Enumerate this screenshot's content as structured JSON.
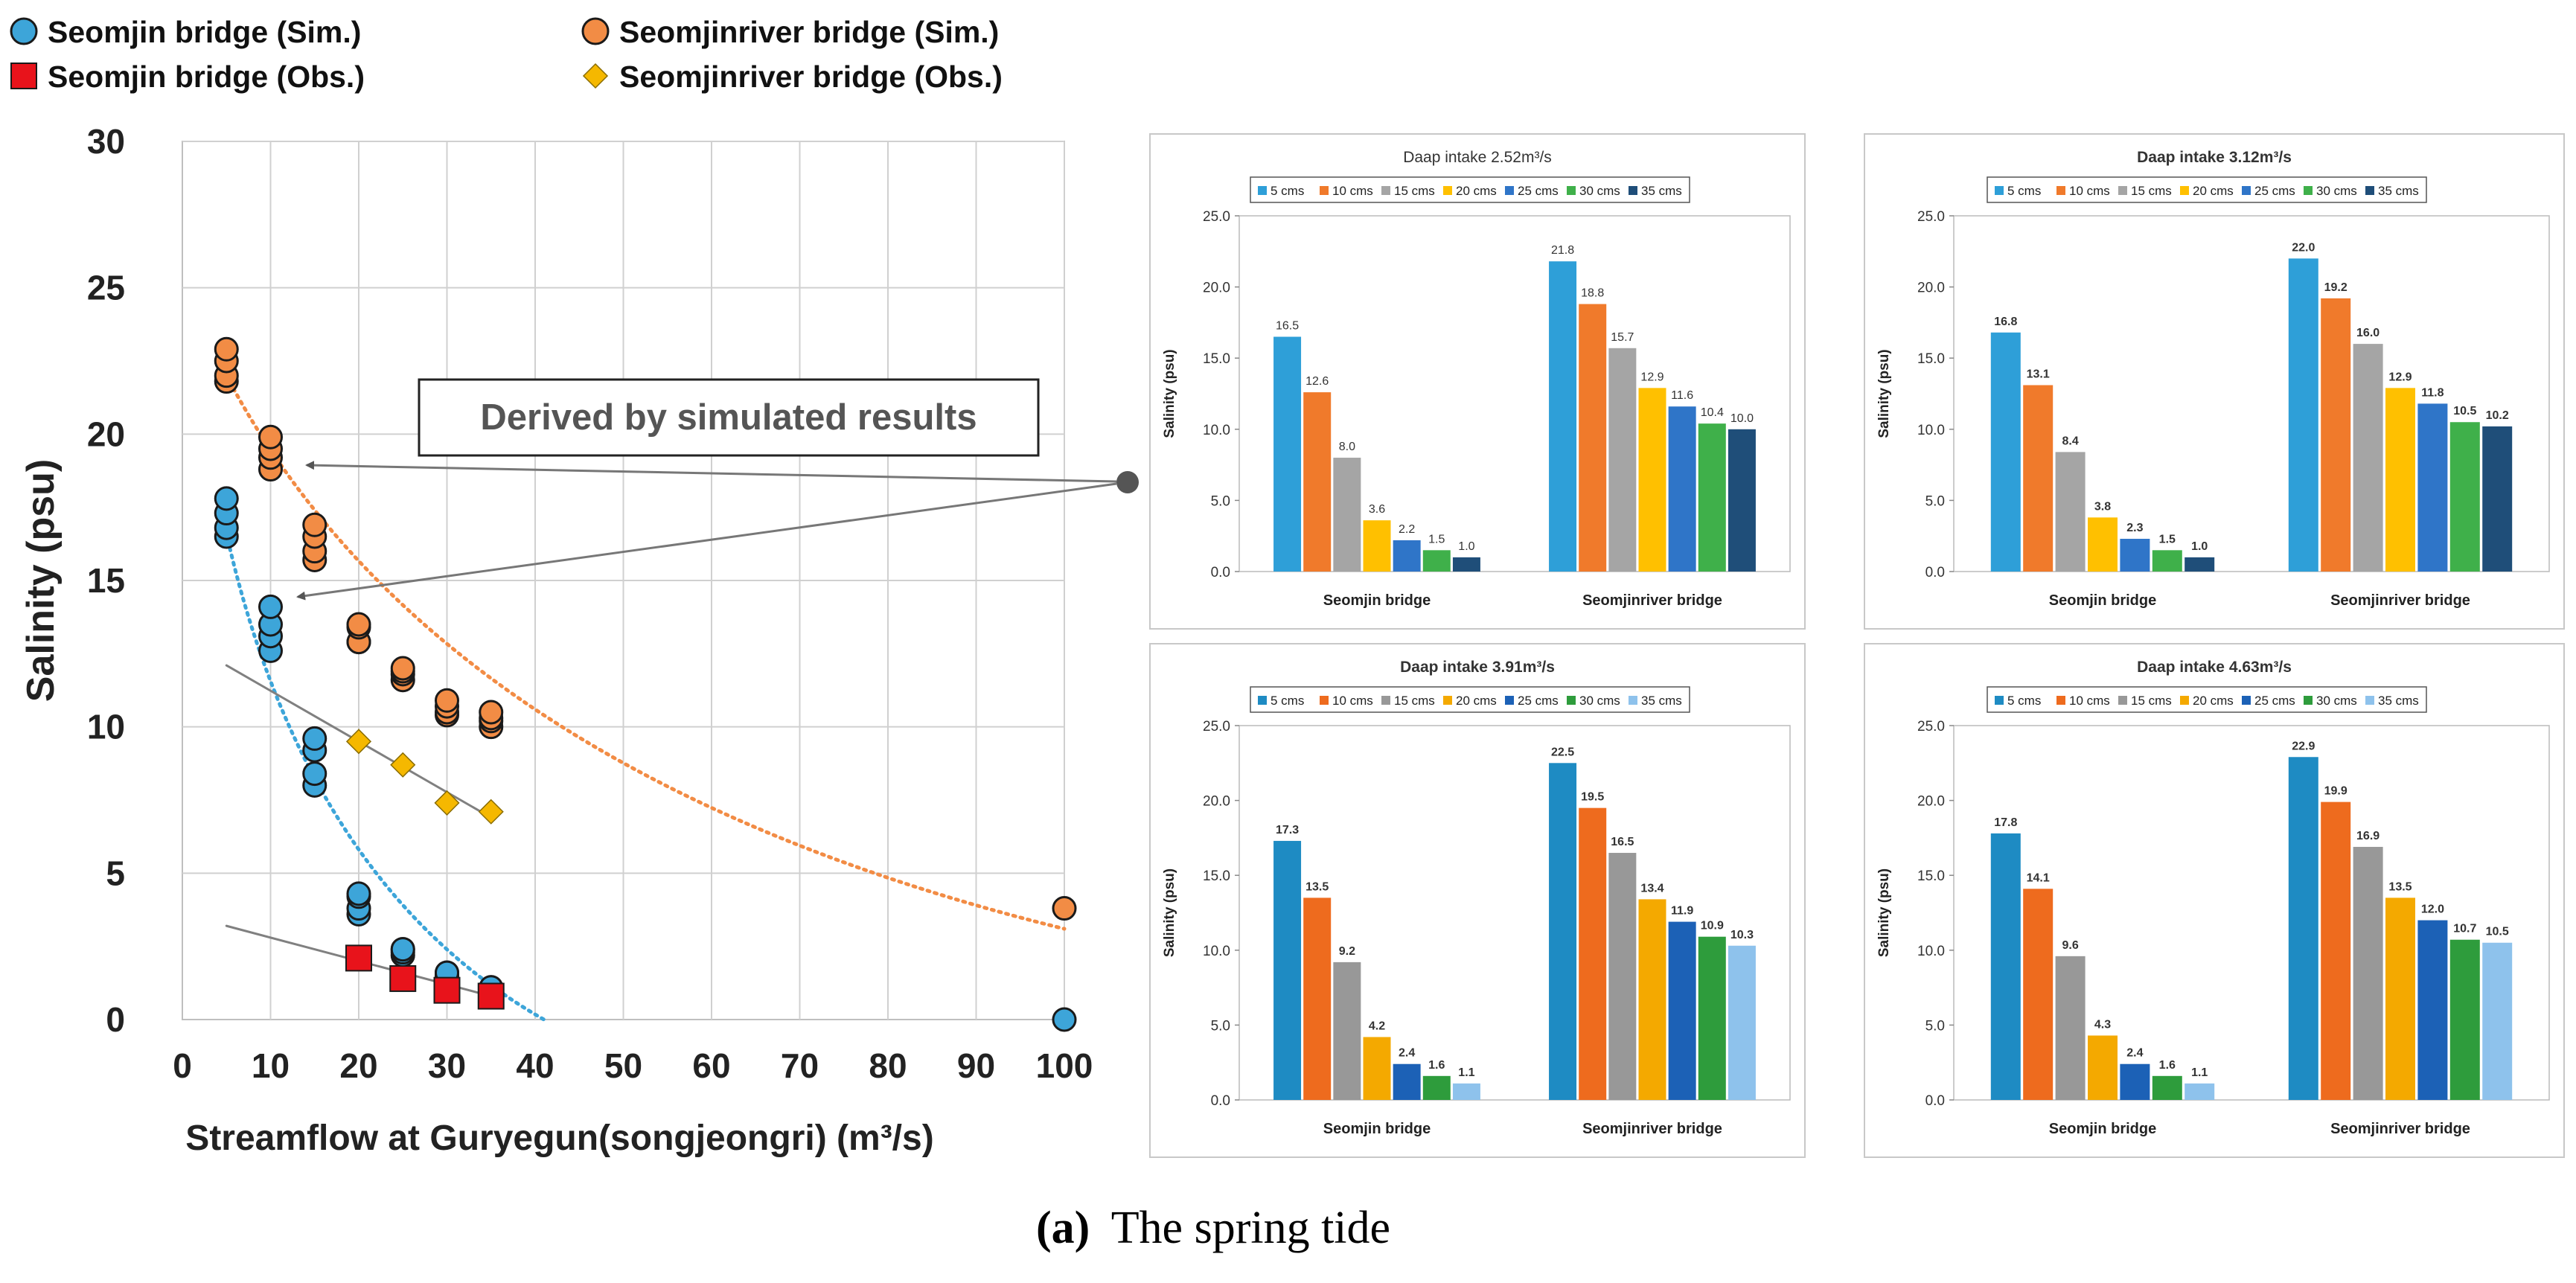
{
  "figure": {
    "caption_letter": "(a)",
    "caption_text": "The spring tide"
  },
  "chart_data": [
    {
      "type": "scatter",
      "xlabel": "Streamflow at Guryegun(songjeongri) (m³/s)",
      "ylabel": "Salinity (psu)",
      "xlim": [
        0,
        100
      ],
      "ylim": [
        0,
        30
      ],
      "xticks": [
        0,
        10,
        20,
        30,
        40,
        50,
        60,
        70,
        80,
        90,
        100
      ],
      "yticks": [
        0,
        5,
        10,
        15,
        20,
        25,
        30
      ],
      "grid": true,
      "legend_position": "top",
      "annotation": "Derived by simulated results",
      "series": [
        {
          "name": "Seomjin bridge (Sim.)",
          "marker": "circle",
          "color": "#3DA5D9",
          "points": [
            [
              5,
              16.5
            ],
            [
              5,
              16.8
            ],
            [
              5,
              17.3
            ],
            [
              5,
              17.8
            ],
            [
              10,
              12.6
            ],
            [
              10,
              13.1
            ],
            [
              10,
              13.5
            ],
            [
              10,
              14.1
            ],
            [
              15,
              8.0
            ],
            [
              15,
              8.4
            ],
            [
              15,
              9.2
            ],
            [
              15,
              9.6
            ],
            [
              20,
              3.6
            ],
            [
              20,
              3.8
            ],
            [
              20,
              4.2
            ],
            [
              20,
              4.3
            ],
            [
              25,
              2.2
            ],
            [
              25,
              2.3
            ],
            [
              25,
              2.4
            ],
            [
              25,
              2.4
            ],
            [
              30,
              1.5
            ],
            [
              30,
              1.5
            ],
            [
              30,
              1.6
            ],
            [
              30,
              1.6
            ],
            [
              35,
              1.0
            ],
            [
              35,
              1.0
            ],
            [
              35,
              1.1
            ],
            [
              35,
              1.1
            ],
            [
              100,
              0.0
            ]
          ]
        },
        {
          "name": "Seomjinriver bridge (Sim.)",
          "marker": "circle",
          "color": "#F28C45",
          "points": [
            [
              5,
              21.8
            ],
            [
              5,
              22.0
            ],
            [
              5,
              22.5
            ],
            [
              5,
              22.9
            ],
            [
              10,
              18.8
            ],
            [
              10,
              19.2
            ],
            [
              10,
              19.5
            ],
            [
              10,
              19.9
            ],
            [
              15,
              15.7
            ],
            [
              15,
              16.0
            ],
            [
              15,
              16.5
            ],
            [
              15,
              16.9
            ],
            [
              20,
              12.9
            ],
            [
              20,
              12.9
            ],
            [
              20,
              13.4
            ],
            [
              20,
              13.5
            ],
            [
              25,
              11.6
            ],
            [
              25,
              11.8
            ],
            [
              25,
              11.9
            ],
            [
              25,
              12.0
            ],
            [
              30,
              10.4
            ],
            [
              30,
              10.5
            ],
            [
              30,
              10.7
            ],
            [
              30,
              10.9
            ],
            [
              35,
              10.0
            ],
            [
              35,
              10.2
            ],
            [
              35,
              10.3
            ],
            [
              35,
              10.5
            ],
            [
              100,
              3.8
            ]
          ]
        },
        {
          "name": "Seomjin bridge (Obs.)",
          "marker": "square",
          "color": "#E8131B",
          "points": [
            [
              20,
              2.1
            ],
            [
              25,
              1.4
            ],
            [
              30,
              1.0
            ],
            [
              35,
              0.8
            ]
          ]
        },
        {
          "name": "Seomjinriver bridge (Obs.)",
          "marker": "diamond",
          "color": "#F5B800",
          "points": [
            [
              20,
              9.5
            ],
            [
              25,
              8.7
            ],
            [
              30,
              7.4
            ],
            [
              35,
              7.1
            ]
          ]
        }
      ],
      "trendlines": [
        {
          "of": "Seomjin bridge (Sim.)",
          "style": "dotted",
          "color": "#3DA5D9",
          "from": [
            5,
            16.6
          ],
          "to": [
            41,
            0.0
          ],
          "curve": true
        },
        {
          "of": "Seomjinriver bridge (Sim.)",
          "style": "dotted",
          "color": "#F28C45",
          "from": [
            5,
            22.0
          ],
          "to": [
            100,
            3.1
          ],
          "curve": true
        },
        {
          "of": "Seomjin bridge (Obs.)",
          "style": "solid",
          "color": "#808080",
          "from": [
            5,
            3.2
          ],
          "to": [
            35,
            0.8
          ]
        },
        {
          "of": "Seomjinriver bridge (Obs.)",
          "style": "solid",
          "color": "#808080",
          "from": [
            5,
            12.1
          ],
          "to": [
            35,
            6.9
          ]
        }
      ]
    },
    {
      "type": "bar",
      "title": "Daap intake 2.52m³/s",
      "title_bold": false,
      "categories": [
        "Seomjin bridge",
        "Seomjinriver bridge"
      ],
      "ylabel": "Salinity (psu)",
      "ylim": [
        0,
        25
      ],
      "yticks": [
        "0.0",
        "5.0",
        "10.0",
        "15.0",
        "20.0",
        "25.0"
      ],
      "series": [
        {
          "name": "5 cms",
          "color": "#2E9FD8",
          "values": [
            16.5,
            21.8
          ]
        },
        {
          "name": "10 cms",
          "color": "#F07A2B",
          "values": [
            12.6,
            18.8
          ]
        },
        {
          "name": "15 cms",
          "color": "#A5A5A5",
          "values": [
            8.0,
            15.7
          ]
        },
        {
          "name": "20 cms",
          "color": "#FFC000",
          "values": [
            3.6,
            12.9
          ]
        },
        {
          "name": "25 cms",
          "color": "#2F75C8",
          "values": [
            2.2,
            11.6
          ]
        },
        {
          "name": "30 cms",
          "color": "#3FB04A",
          "values": [
            1.5,
            10.4
          ]
        },
        {
          "name": "35 cms",
          "color": "#1F4E79",
          "values": [
            1.0,
            10.0
          ]
        }
      ]
    },
    {
      "type": "bar",
      "title": "Daap intake 3.12m³/s",
      "title_bold": true,
      "categories": [
        "Seomjin bridge",
        "Seomjinriver bridge"
      ],
      "ylabel": "Salinity (psu)",
      "ylim": [
        0,
        25
      ],
      "yticks": [
        "0.0",
        "5.0",
        "10.0",
        "15.0",
        "20.0",
        "25.0"
      ],
      "series": [
        {
          "name": "5 cms",
          "color": "#2E9FD8",
          "values": [
            16.8,
            22.0
          ]
        },
        {
          "name": "10 cms",
          "color": "#F07A2B",
          "values": [
            13.1,
            19.2
          ]
        },
        {
          "name": "15 cms",
          "color": "#A5A5A5",
          "values": [
            8.4,
            16.0
          ]
        },
        {
          "name": "20 cms",
          "color": "#FFC000",
          "values": [
            3.8,
            12.9
          ]
        },
        {
          "name": "25 cms",
          "color": "#2F75C8",
          "values": [
            2.3,
            11.8
          ]
        },
        {
          "name": "30 cms",
          "color": "#3FB04A",
          "values": [
            1.5,
            10.5
          ]
        },
        {
          "name": "35 cms",
          "color": "#1F4E79",
          "values": [
            1.0,
            10.2
          ]
        }
      ]
    },
    {
      "type": "bar",
      "title": "Daap intake 3.91m³/s",
      "title_bold": true,
      "categories": [
        "Seomjin bridge",
        "Seomjinriver bridge"
      ],
      "ylabel": "Salinity (psu)",
      "ylim": [
        0,
        25
      ],
      "yticks": [
        "0.0",
        "5.0",
        "10.0",
        "15.0",
        "20.0",
        "25.0"
      ],
      "series": [
        {
          "name": "5 cms",
          "color": "#1E8BC3",
          "values": [
            17.3,
            22.5
          ]
        },
        {
          "name": "10 cms",
          "color": "#EE6B1E",
          "values": [
            13.5,
            19.5
          ]
        },
        {
          "name": "15 cms",
          "color": "#989898",
          "values": [
            9.2,
            16.5
          ]
        },
        {
          "name": "20 cms",
          "color": "#F4A900",
          "values": [
            4.2,
            13.4
          ]
        },
        {
          "name": "25 cms",
          "color": "#1C61B6",
          "values": [
            2.4,
            11.9
          ]
        },
        {
          "name": "30 cms",
          "color": "#2E9C3C",
          "values": [
            1.6,
            10.9
          ]
        },
        {
          "name": "35 cms",
          "color": "#8EC2EC",
          "values": [
            1.1,
            10.3
          ]
        }
      ]
    },
    {
      "type": "bar",
      "title": "Daap intake 4.63m³/s",
      "title_bold": true,
      "categories": [
        "Seomjin bridge",
        "Seomjinriver bridge"
      ],
      "ylabel": "Salinity (psu)",
      "ylim": [
        0,
        25
      ],
      "yticks": [
        "0.0",
        "5.0",
        "10.0",
        "15.0",
        "20.0",
        "25.0"
      ],
      "series": [
        {
          "name": "5 cms",
          "color": "#1E8BC3",
          "values": [
            17.8,
            22.9
          ]
        },
        {
          "name": "10 cms",
          "color": "#EE6B1E",
          "values": [
            14.1,
            19.9
          ]
        },
        {
          "name": "15 cms",
          "color": "#989898",
          "values": [
            9.6,
            16.9
          ]
        },
        {
          "name": "20 cms",
          "color": "#F4A900",
          "values": [
            4.3,
            13.5
          ]
        },
        {
          "name": "25 cms",
          "color": "#1C61B6",
          "values": [
            2.4,
            12.0
          ]
        },
        {
          "name": "30 cms",
          "color": "#2E9C3C",
          "values": [
            1.6,
            10.7
          ]
        },
        {
          "name": "35 cms",
          "color": "#8EC2EC",
          "values": [
            1.1,
            10.5
          ]
        }
      ]
    }
  ]
}
